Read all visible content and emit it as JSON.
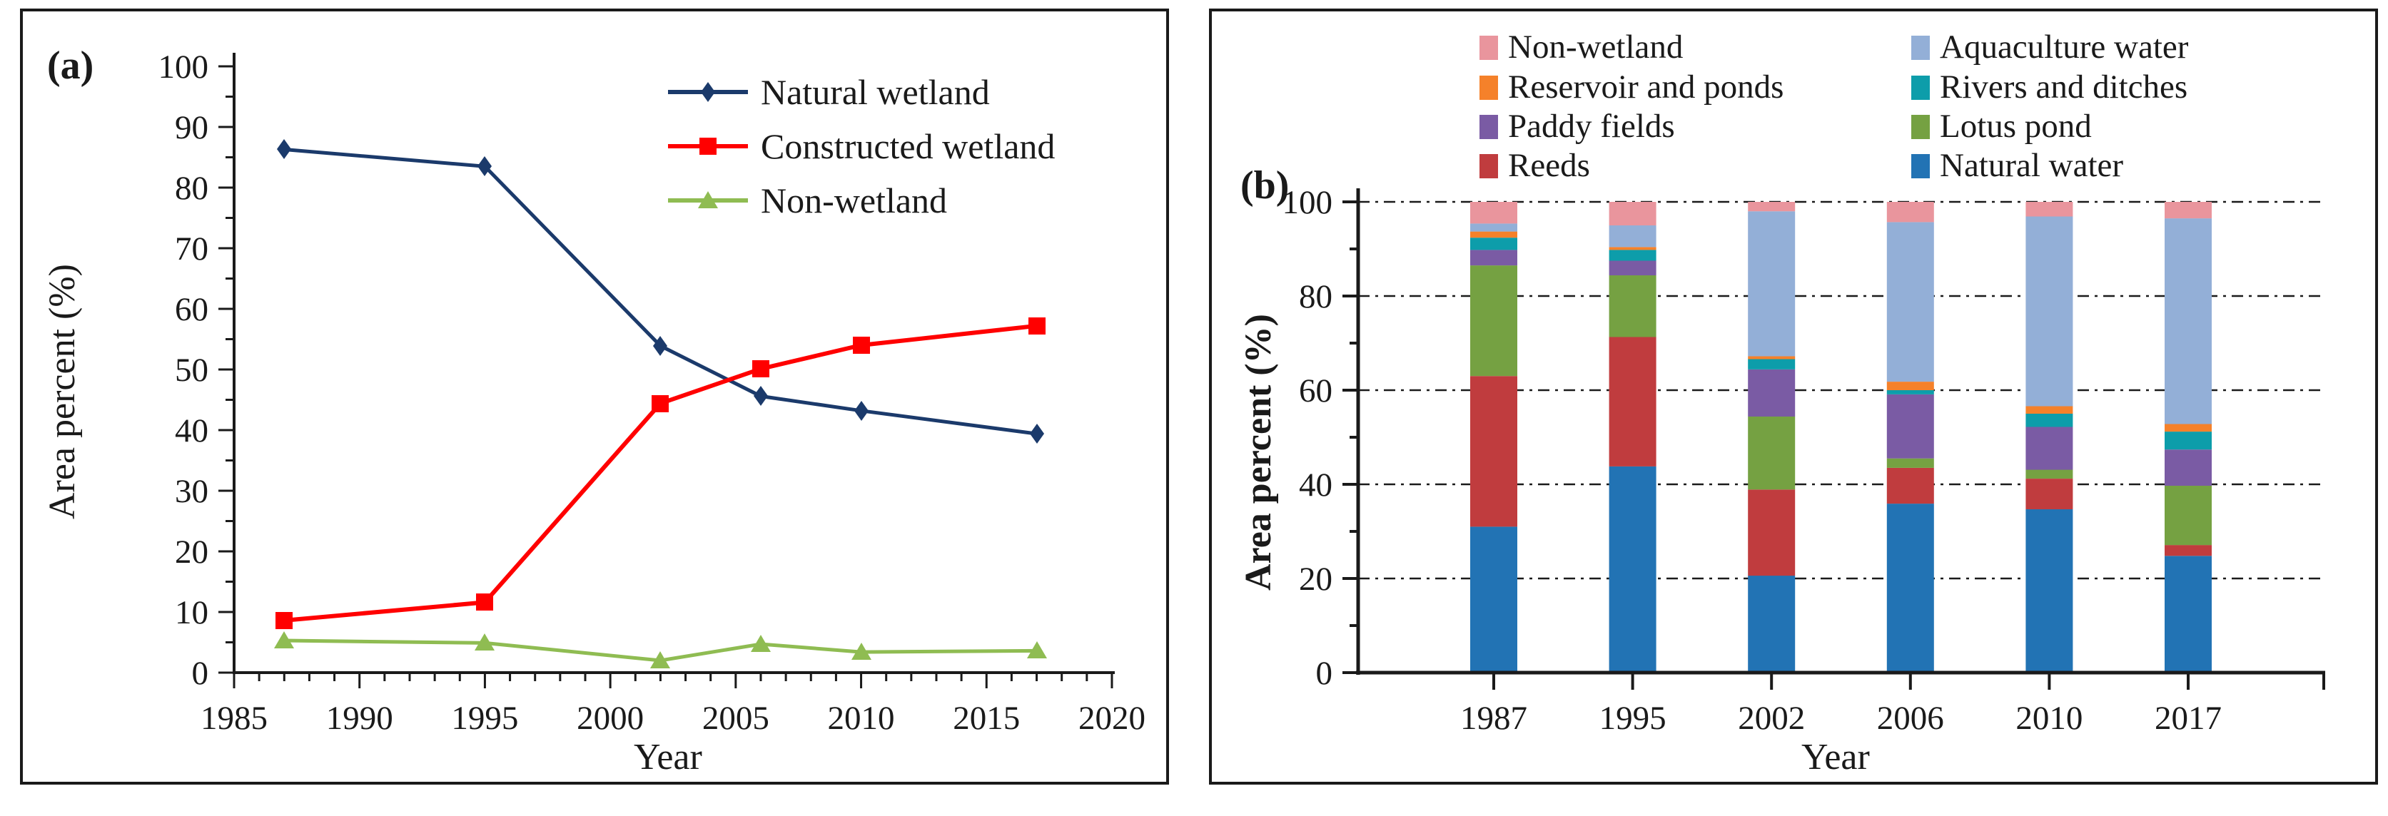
{
  "figure": {
    "panel_a": {
      "label": "(a)",
      "xlabel": "Year",
      "ylabel": "Area percent (%)"
    },
    "panel_b": {
      "label": "(b)",
      "xlabel": "Year",
      "ylabel": "Area percent (%)"
    }
  },
  "chart_data": [
    {
      "type": "line",
      "panel": "a",
      "xlabel": "Year",
      "ylabel": "Area percent (%)",
      "x": [
        1987,
        1995,
        2002,
        2006,
        2010,
        2017
      ],
      "series": [
        {
          "name": "Natural wetland",
          "marker": "diamond",
          "color": "#1B3A6B",
          "values": [
            86.3,
            83.5,
            53.9,
            45.6,
            43.2,
            39.4
          ]
        },
        {
          "name": "Constructed wetland",
          "marker": "square",
          "color": "#FF0000",
          "values": [
            8.6,
            11.6,
            44.4,
            50.1,
            54.0,
            57.2
          ]
        },
        {
          "name": "Non-wetland",
          "marker": "triangle",
          "color": "#8FBC52",
          "values": [
            5.3,
            4.9,
            2.0,
            4.7,
            3.4,
            3.6
          ]
        }
      ],
      "xlim": [
        1985,
        2020
      ],
      "ylim": [
        0,
        100
      ],
      "xticks": [
        1985,
        1990,
        1995,
        2000,
        2005,
        2010,
        2015,
        2020
      ],
      "yticks": [
        0,
        10,
        20,
        30,
        40,
        50,
        60,
        70,
        80,
        90,
        100
      ],
      "x_minor_step": 1,
      "y_minor_step": 5,
      "grid": false,
      "legend_position": "top-right"
    },
    {
      "type": "stacked-bar",
      "panel": "b",
      "xlabel": "Year",
      "ylabel": "Area percent (%)",
      "categories": [
        "1987",
        "1995",
        "2002",
        "2006",
        "2010",
        "2017"
      ],
      "series": [
        {
          "name": "Natural water",
          "color": "#2273B4",
          "values": [
            31.0,
            43.8,
            20.6,
            35.9,
            34.7,
            24.8
          ]
        },
        {
          "name": "Reeds",
          "color": "#C03C3E",
          "values": [
            32.0,
            27.5,
            18.3,
            7.6,
            6.5,
            2.3
          ]
        },
        {
          "name": "Lotus pond",
          "color": "#75A142",
          "values": [
            23.5,
            13.1,
            15.5,
            2.0,
            1.9,
            12.6
          ]
        },
        {
          "name": "Paddy fields",
          "color": "#7A5BA4",
          "values": [
            3.3,
            3.1,
            10.0,
            13.6,
            9.1,
            7.7
          ]
        },
        {
          "name": "Rivers and ditches",
          "color": "#0D9DAA",
          "values": [
            2.6,
            2.3,
            2.2,
            0.9,
            2.8,
            3.8
          ]
        },
        {
          "name": "Reservoir and ponds",
          "color": "#F5812A",
          "values": [
            1.3,
            0.6,
            0.6,
            1.8,
            1.6,
            1.6
          ]
        },
        {
          "name": "Aquaculture water",
          "color": "#93AFD7",
          "values": [
            1.7,
            4.6,
            30.8,
            33.9,
            40.3,
            43.7
          ]
        },
        {
          "name": "Non-wetland",
          "color": "#E9959D",
          "values": [
            4.6,
            5.0,
            2.0,
            4.3,
            3.1,
            3.5
          ]
        }
      ],
      "ylim": [
        0,
        100
      ],
      "yticks": [
        0,
        20,
        40,
        60,
        80,
        100
      ],
      "y_minor_step": 10,
      "grid": "horizontal dash-dot at 20,40,60,80,100",
      "legend_position": "top, two columns",
      "legend_order_row_major": [
        "Non-wetland",
        "Aquaculture water",
        "Reservoir and ponds",
        "Rivers and ditches",
        "Paddy fields",
        "Lotus pond",
        "Reeds",
        "Natural water"
      ]
    }
  ]
}
